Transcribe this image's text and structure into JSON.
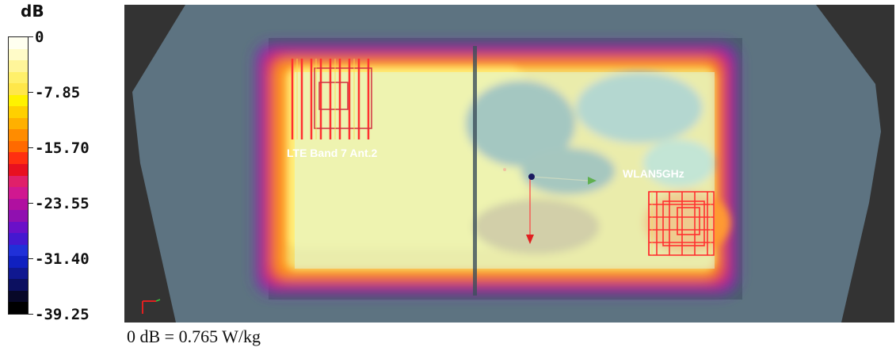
{
  "colorbar": {
    "unit": "dB",
    "ticks": [
      "0",
      "-7.85",
      "-15.70",
      "-23.55",
      "-31.40",
      "-39.25"
    ],
    "colors_top_to_bottom": [
      "#fffff0",
      "#fffbc8",
      "#fff59a",
      "#fff06a",
      "#ffe74a",
      "#fff200",
      "#ffd000",
      "#ffb000",
      "#ff8c00",
      "#ff6a00",
      "#ff3010",
      "#e81020",
      "#e0206a",
      "#d01890",
      "#b010a0",
      "#9010b0",
      "#6a10c8",
      "#4418d0",
      "#2030d8",
      "#1020c0",
      "#101890",
      "#0c1060",
      "#080828",
      "#000000"
    ]
  },
  "plot": {
    "antennas": [
      {
        "label": "LTE Band 7 Ant.2"
      },
      {
        "label": "WLAN5GHz"
      }
    ],
    "background_color": "#333333",
    "phantom_color": "#5d7381"
  },
  "caption": "0 dB = 0.765 W/kg"
}
